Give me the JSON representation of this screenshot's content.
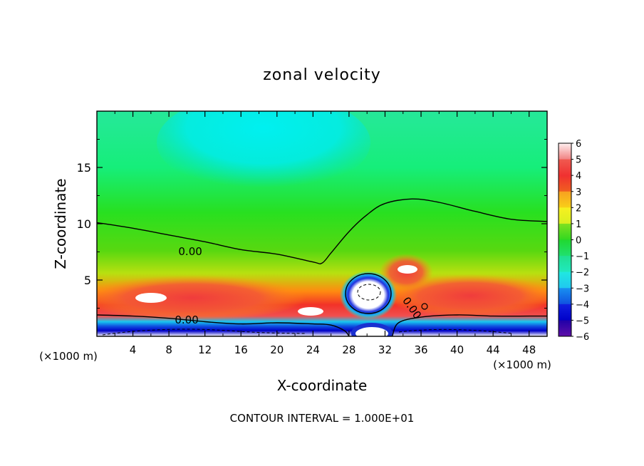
{
  "chart_data": {
    "type": "heatmap",
    "title": "zonal velocity",
    "xlabel": "X-coordinate",
    "ylabel": "Z-coordinate",
    "x_unit_left": "(×1000 m)",
    "x_unit_right": "(×1000 m)",
    "xlim": [
      0,
      50
    ],
    "ylim": [
      0,
      20
    ],
    "x_ticks": [
      4,
      8,
      12,
      16,
      20,
      24,
      28,
      32,
      36,
      40,
      44,
      48
    ],
    "y_ticks": [
      5,
      10,
      15
    ],
    "colorbar": {
      "ticks": [
        6,
        5,
        4,
        3,
        2,
        1,
        0,
        -1,
        -2,
        -3,
        -4,
        -5,
        -6
      ],
      "tick_labels": [
        "6",
        "5",
        "4",
        "3",
        "2",
        "1",
        "0",
        "−1",
        "−2",
        "−3",
        "−4",
        "−5",
        "−6"
      ]
    },
    "contour_labels": [
      "0.00",
      "0.00",
      "0.00"
    ],
    "contour_zero_upper": [
      [
        0,
        10.1
      ],
      [
        4,
        9.6
      ],
      [
        8,
        9.0
      ],
      [
        12,
        8.4
      ],
      [
        16,
        7.7
      ],
      [
        20,
        7.3
      ],
      [
        24,
        6.6
      ],
      [
        25,
        6.5
      ],
      [
        26,
        7.4
      ],
      [
        28,
        9.3
      ],
      [
        30,
        10.8
      ],
      [
        32,
        11.8
      ],
      [
        35,
        12.2
      ],
      [
        38,
        11.9
      ],
      [
        42,
        11.1
      ],
      [
        46,
        10.4
      ],
      [
        50,
        10.2
      ]
    ],
    "contour_zero_lower": [
      [
        0,
        1.9
      ],
      [
        4,
        1.8
      ],
      [
        8,
        1.6
      ],
      [
        12,
        1.3
      ],
      [
        16,
        1.1
      ],
      [
        20,
        1.2
      ],
      [
        24,
        1.1
      ],
      [
        26,
        1.0
      ],
      [
        27.5,
        0.5
      ],
      [
        28,
        0
      ]
    ],
    "contour_zero_right": [
      [
        32.8,
        0
      ],
      [
        33.5,
        1.2
      ],
      [
        36,
        1.7
      ],
      [
        40,
        1.9
      ],
      [
        44,
        1.8
      ],
      [
        48,
        1.8
      ],
      [
        50,
        1.8
      ]
    ],
    "footer": "CONTOUR INTERVAL = 1.000E+01"
  }
}
